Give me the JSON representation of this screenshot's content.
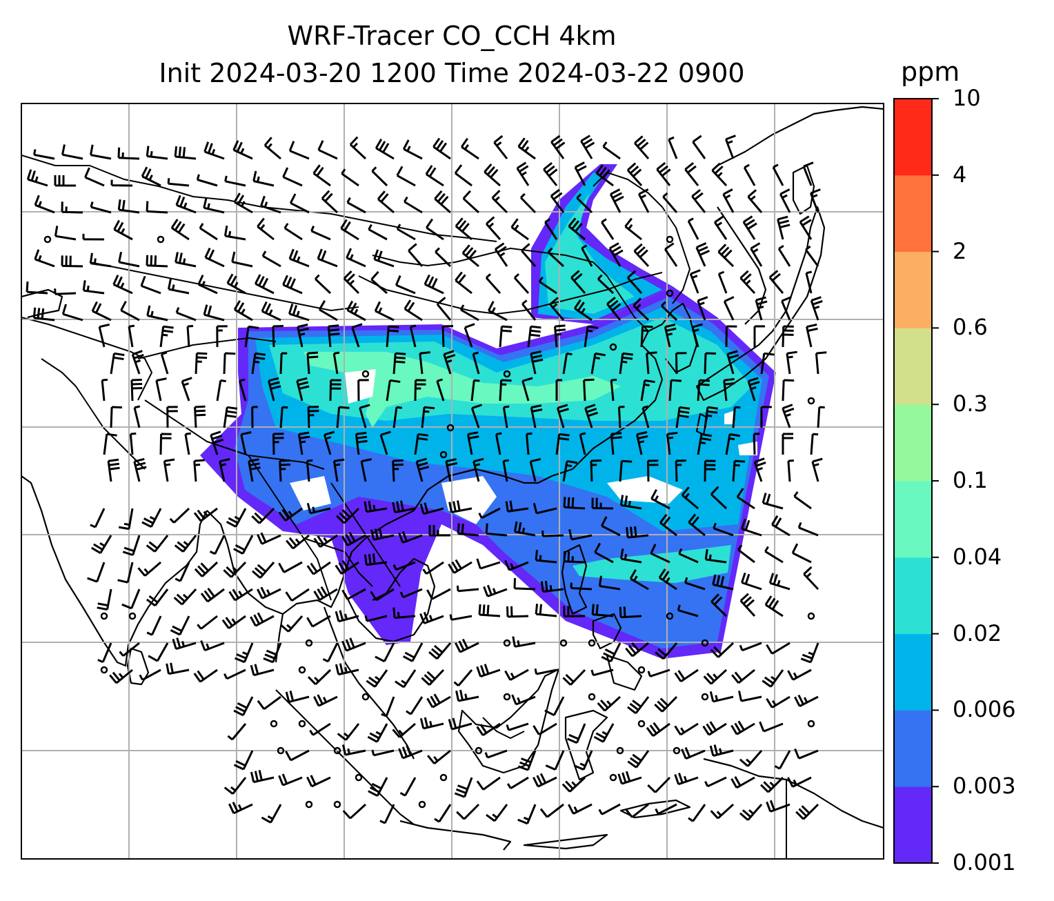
{
  "title": {
    "line1": "WRF-Tracer CO_CCH 4km",
    "line2": "Init 2024-03-20 1200 Time 2024-03-22 0900"
  },
  "colorbar": {
    "unit": "ppm",
    "ticks": [
      "0.001",
      "0.003",
      "0.006",
      "0.02",
      "0.04",
      "0.1",
      "0.3",
      "0.6",
      "2",
      "4",
      "10"
    ],
    "colors": [
      "#6428f8",
      "#3573f2",
      "#00b4ea",
      "#2de0d4",
      "#68f8c0",
      "#96f89c",
      "#d2e08c",
      "#fcae63",
      "#ff723c",
      "#ff2a18"
    ]
  },
  "map": {
    "field_colors": {
      "level1": "#6428f8",
      "level2": "#3573f2",
      "level3": "#00b4ea",
      "level4": "#2de0d4",
      "level5": "#68f8c0"
    },
    "wind_barb_color": "#000000",
    "coastline_color": "#000000",
    "gridline_color": "#b0b0b0"
  }
}
